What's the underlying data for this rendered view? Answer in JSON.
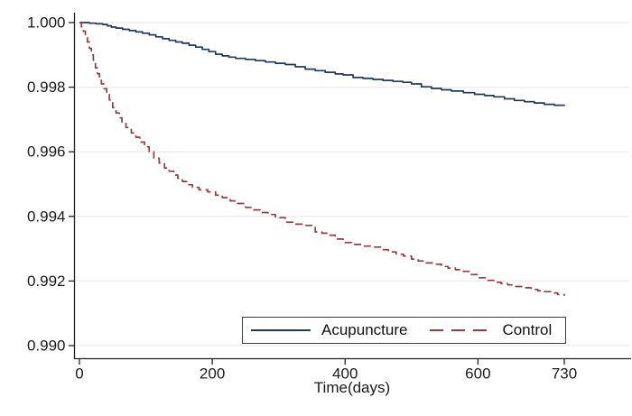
{
  "figure": {
    "type_hint": "kaplan-meier-survival-plot"
  },
  "colors": {
    "background": "#ffffff",
    "acupuncture_line": "#1f3b5c",
    "control_line": "#963c43",
    "gridline": "#e9ebee",
    "axis": "#222222",
    "tick_text": "#1a1a1a",
    "legend_border": "#3a3a3a"
  },
  "chart_data": {
    "type": "line",
    "title": "",
    "xlabel": "Time(days)",
    "ylabel": "",
    "xlim": [
      0,
      831
    ],
    "ylim": [
      0.99,
      1.0
    ],
    "grid": true,
    "legend_position": "inside-bottom-center",
    "x_ticks": [
      {
        "label": "0",
        "value": 0
      },
      {
        "label": "200",
        "value": 200
      },
      {
        "label": "400",
        "value": 400
      },
      {
        "label": "600",
        "value": 600
      },
      {
        "label": "730",
        "value": 730
      }
    ],
    "y_ticks": [
      {
        "label": "1.000",
        "value": 1.0
      },
      {
        "label": "0.998",
        "value": 0.998
      },
      {
        "label": "0.996",
        "value": 0.996
      },
      {
        "label": "0.994",
        "value": 0.994
      },
      {
        "label": "0.992",
        "value": 0.992
      },
      {
        "label": "0.990",
        "value": 0.99
      }
    ],
    "series": [
      {
        "name": "Acupuncture",
        "style": "solid",
        "color": "#1f3b5c",
        "points": [
          [
            0,
            1.0
          ],
          [
            15,
            0.99998
          ],
          [
            25,
            0.99996
          ],
          [
            35,
            0.99994
          ],
          [
            42,
            0.9999
          ],
          [
            48,
            0.99986
          ],
          [
            55,
            0.99983
          ],
          [
            65,
            0.99979
          ],
          [
            75,
            0.99975
          ],
          [
            85,
            0.99971
          ],
          [
            95,
            0.99967
          ],
          [
            105,
            0.99962
          ],
          [
            115,
            0.99956
          ],
          [
            125,
            0.9995
          ],
          [
            135,
            0.99945
          ],
          [
            145,
            0.9994
          ],
          [
            155,
            0.99936
          ],
          [
            165,
            0.9993
          ],
          [
            175,
            0.99924
          ],
          [
            185,
            0.99917
          ],
          [
            195,
            0.9991
          ],
          [
            205,
            0.99902
          ],
          [
            215,
            0.99897
          ],
          [
            225,
            0.99893
          ],
          [
            235,
            0.99889
          ],
          [
            250,
            0.99886
          ],
          [
            265,
            0.99882
          ],
          [
            280,
            0.99878
          ],
          [
            295,
            0.99874
          ],
          [
            310,
            0.9987
          ],
          [
            325,
            0.99863
          ],
          [
            340,
            0.99856
          ],
          [
            355,
            0.99851
          ],
          [
            370,
            0.99846
          ],
          [
            385,
            0.99841
          ],
          [
            397,
            0.99838
          ],
          [
            412,
            0.9983
          ],
          [
            427,
            0.99827
          ],
          [
            442,
            0.99824
          ],
          [
            457,
            0.99821
          ],
          [
            472,
            0.99818
          ],
          [
            487,
            0.99815
          ],
          [
            500,
            0.9981
          ],
          [
            515,
            0.99801
          ],
          [
            530,
            0.99796
          ],
          [
            545,
            0.99792
          ],
          [
            560,
            0.99788
          ],
          [
            578,
            0.99783
          ],
          [
            595,
            0.99778
          ],
          [
            610,
            0.99774
          ],
          [
            624,
            0.9977
          ],
          [
            640,
            0.99764
          ],
          [
            655,
            0.99759
          ],
          [
            670,
            0.99755
          ],
          [
            685,
            0.99751
          ],
          [
            700,
            0.99747
          ],
          [
            715,
            0.99744
          ],
          [
            730,
            0.99742
          ]
        ]
      },
      {
        "name": "Control",
        "style": "dashed",
        "color": "#963c43",
        "points": [
          [
            0,
            1.0
          ],
          [
            3,
            0.99987
          ],
          [
            6,
            0.99973
          ],
          [
            9,
            0.99958
          ],
          [
            12,
            0.9994
          ],
          [
            15,
            0.9992
          ],
          [
            18,
            0.999
          ],
          [
            21,
            0.9988
          ],
          [
            24,
            0.9986
          ],
          [
            27,
            0.99842
          ],
          [
            30,
            0.99824
          ],
          [
            33,
            0.9981
          ],
          [
            37,
            0.99795
          ],
          [
            41,
            0.99778
          ],
          [
            45,
            0.9976
          ],
          [
            50,
            0.99737
          ],
          [
            55,
            0.9972
          ],
          [
            60,
            0.99705
          ],
          [
            64,
            0.99692
          ],
          [
            70,
            0.99675
          ],
          [
            78,
            0.99658
          ],
          [
            85,
            0.99645
          ],
          [
            91,
            0.9963
          ],
          [
            98,
            0.99615
          ],
          [
            105,
            0.996
          ],
          [
            112,
            0.9958
          ],
          [
            120,
            0.99565
          ],
          [
            128,
            0.9955
          ],
          [
            135,
            0.9954
          ],
          [
            142,
            0.99528
          ],
          [
            148,
            0.99518
          ],
          [
            155,
            0.99508
          ],
          [
            163,
            0.99498
          ],
          [
            170,
            0.9949
          ],
          [
            180,
            0.99482
          ],
          [
            193,
            0.99476
          ],
          [
            205,
            0.99466
          ],
          [
            215,
            0.99458
          ],
          [
            227,
            0.99448
          ],
          [
            238,
            0.9944
          ],
          [
            250,
            0.99428
          ],
          [
            260,
            0.9942
          ],
          [
            272,
            0.99412
          ],
          [
            284,
            0.99406
          ],
          [
            295,
            0.99396
          ],
          [
            310,
            0.99382
          ],
          [
            322,
            0.99376
          ],
          [
            340,
            0.99372
          ],
          [
            355,
            0.99352
          ],
          [
            365,
            0.99348
          ],
          [
            374,
            0.99342
          ],
          [
            385,
            0.9933
          ],
          [
            397,
            0.99319
          ],
          [
            410,
            0.99313
          ],
          [
            425,
            0.99308
          ],
          [
            442,
            0.99305
          ],
          [
            455,
            0.99297
          ],
          [
            465,
            0.9929
          ],
          [
            477,
            0.99283
          ],
          [
            488,
            0.99277
          ],
          [
            500,
            0.99268
          ],
          [
            510,
            0.99262
          ],
          [
            522,
            0.99256
          ],
          [
            533,
            0.99252
          ],
          [
            545,
            0.99245
          ],
          [
            555,
            0.9924
          ],
          [
            566,
            0.99235
          ],
          [
            578,
            0.9923
          ],
          [
            590,
            0.9922
          ],
          [
            600,
            0.9921
          ],
          [
            612,
            0.99202
          ],
          [
            624,
            0.99196
          ],
          [
            635,
            0.99192
          ],
          [
            645,
            0.99188
          ],
          [
            657,
            0.99183
          ],
          [
            669,
            0.99179
          ],
          [
            680,
            0.99174
          ],
          [
            690,
            0.9917
          ],
          [
            700,
            0.99167
          ],
          [
            710,
            0.99163
          ],
          [
            720,
            0.99158
          ],
          [
            730,
            0.99154
          ]
        ]
      }
    ]
  }
}
